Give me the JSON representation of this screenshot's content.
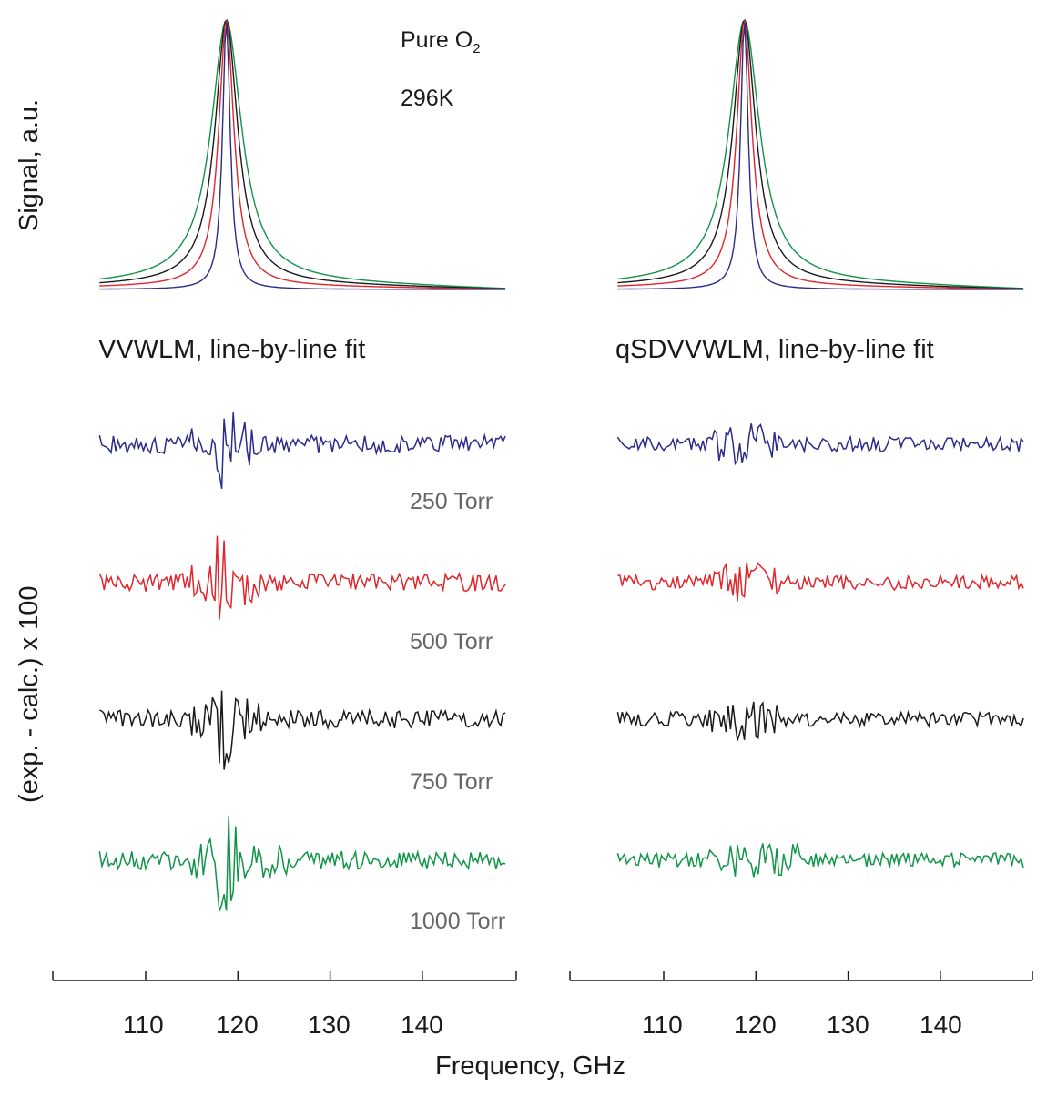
{
  "chart_data": {
    "type": "line",
    "xlabel": "Frequency, GHz",
    "xlim": [
      100,
      150
    ],
    "xticks": [
      110,
      120,
      130,
      140
    ],
    "ylabel_top": "Signal, a.u.",
    "ylabel_bottom": "(exp. - calc.) x 100",
    "annotation": {
      "line1": "Pure O",
      "line1_sub": "2",
      "line2": "296K"
    },
    "panels": [
      {
        "title": "VVWLM, line-by-line fit"
      },
      {
        "title": "qSDVVWLM, line-by-line fit"
      }
    ],
    "line_center_ghz": 118.75,
    "x_range_data": [
      105,
      149
    ],
    "series": [
      {
        "name": "250 Torr",
        "color": "#2b2b8a",
        "hwhm_ghz": 0.5,
        "baseline": 0.0
      },
      {
        "name": "500 Torr",
        "color": "#e0252b",
        "hwhm_ghz": 1.0,
        "baseline": 0.015
      },
      {
        "name": "750 Torr",
        "color": "#1a1a1a",
        "hwhm_ghz": 1.5,
        "baseline": 0.025
      },
      {
        "name": "1000 Torr",
        "color": "#109447",
        "hwhm_ghz": 2.0,
        "baseline": 0.035
      }
    ]
  }
}
